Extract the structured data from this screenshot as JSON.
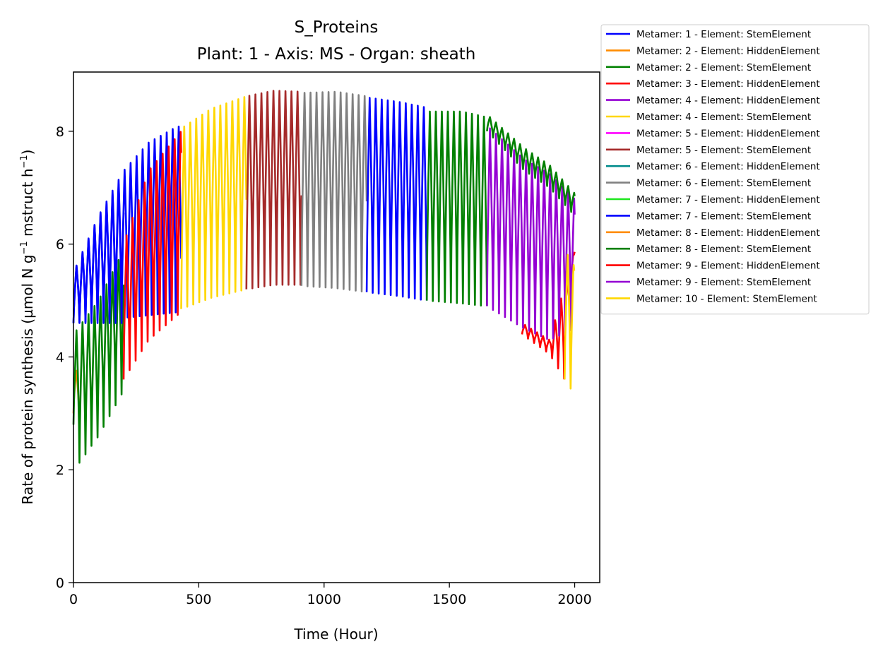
{
  "chart_data": {
    "type": "line",
    "title": "S_Proteins",
    "subtitle": "Plant: 1 - Axis: MS - Organ: sheath",
    "xlabel": "Time (Hour)",
    "ylabel_main": "Rate of protein synthesis (µmol N g",
    "ylabel_sup1": "−1",
    "ylabel_mid": " mstruct h",
    "ylabel_sup2": "−1",
    "ylabel_end": ")",
    "xlim": [
      0,
      2100
    ],
    "ylim": [
      0,
      9.05
    ],
    "xticks": [
      0,
      500,
      1000,
      1500,
      2000
    ],
    "yticks": [
      0,
      2,
      4,
      6,
      8
    ],
    "legend_position": "outside-top-right",
    "series": [
      {
        "name": "Metamer: 1 - Element: StemElement",
        "color": "#0000ff",
        "t0": 0,
        "t1": 430,
        "upper": [
          [
            0,
            5.5
          ],
          [
            100,
            6.5
          ],
          [
            200,
            7.3
          ],
          [
            300,
            7.8
          ],
          [
            400,
            8.05
          ],
          [
            430,
            8.1
          ]
        ],
        "lower": [
          [
            0,
            4.6
          ],
          [
            430,
            4.8
          ]
        ],
        "mask": "below"
      },
      {
        "name": "Metamer: 2 - Element: HiddenElement",
        "color": "#ff8c00",
        "t0": 0,
        "t1": 25,
        "upper": [
          [
            0,
            3.9
          ],
          [
            25,
            3.6
          ]
        ],
        "lower": [
          [
            0,
            3.0
          ],
          [
            25,
            2.9
          ]
        ]
      },
      {
        "name": "Metamer: 2 - Element: StemElement",
        "color": "#008000",
        "t0": 0,
        "t1": 200,
        "upper": [
          [
            0,
            4.4
          ],
          [
            100,
            5.0
          ],
          [
            200,
            5.9
          ]
        ],
        "lower": [
          [
            0,
            2.8
          ],
          [
            20,
            2.1
          ],
          [
            100,
            2.6
          ],
          [
            200,
            3.4
          ]
        ]
      },
      {
        "name": "Metamer: 3 - Element: HiddenElement",
        "color": "#ff0000",
        "t0": 200,
        "t1": 430,
        "upper": [
          [
            200,
            6.0
          ],
          [
            300,
            7.3
          ],
          [
            430,
            8.0
          ]
        ],
        "lower": [
          [
            200,
            3.6
          ],
          [
            300,
            4.3
          ],
          [
            430,
            4.8
          ]
        ]
      },
      {
        "name": "Metamer: 4 - Element: HiddenElement",
        "color": "#9400d3",
        "t0": 0,
        "t1": 0,
        "upper": [],
        "lower": []
      },
      {
        "name": "Metamer: 4 - Element: StemElement",
        "color": "#ffd700",
        "t0": 430,
        "t1": 690,
        "upper": [
          [
            430,
            8.05
          ],
          [
            550,
            8.4
          ],
          [
            690,
            8.62
          ]
        ],
        "lower": [
          [
            430,
            4.85
          ],
          [
            550,
            5.05
          ],
          [
            690,
            5.2
          ]
        ]
      },
      {
        "name": "Metamer: 5 - Element: HiddenElement",
        "color": "#ff00ff",
        "t0": 0,
        "t1": 0,
        "upper": [],
        "lower": []
      },
      {
        "name": "Metamer: 5 - Element: StemElement",
        "color": "#a52a2a",
        "t0": 690,
        "t1": 910,
        "upper": [
          [
            690,
            8.62
          ],
          [
            800,
            8.72
          ],
          [
            910,
            8.7
          ]
        ],
        "lower": [
          [
            690,
            5.2
          ],
          [
            800,
            5.28
          ],
          [
            910,
            5.28
          ]
        ]
      },
      {
        "name": "Metamer: 6 - Element: HiddenElement",
        "color": "#008b8b",
        "t0": 0,
        "t1": 0,
        "upper": [],
        "lower": []
      },
      {
        "name": "Metamer: 6 - Element: StemElement",
        "color": "#808080",
        "t0": 910,
        "t1": 1170,
        "upper": [
          [
            910,
            8.68
          ],
          [
            1050,
            8.7
          ],
          [
            1170,
            8.62
          ]
        ],
        "lower": [
          [
            910,
            5.26
          ],
          [
            1050,
            5.22
          ],
          [
            1170,
            5.15
          ]
        ]
      },
      {
        "name": "Metamer: 7 - Element: HiddenElement",
        "color": "#1ee61e",
        "t0": 0,
        "t1": 0,
        "upper": [],
        "lower": []
      },
      {
        "name": "Metamer: 7 - Element: StemElement",
        "color": "#0000ff",
        "t0": 1170,
        "t1": 1410,
        "upper": [
          [
            1170,
            8.6
          ],
          [
            1300,
            8.52
          ],
          [
            1410,
            8.42
          ]
        ],
        "lower": [
          [
            1170,
            5.15
          ],
          [
            1300,
            5.08
          ],
          [
            1410,
            5.0
          ]
        ]
      },
      {
        "name": "Metamer: 8 - Element: HiddenElement",
        "color": "#ff8c00",
        "t0": 0,
        "t1": 0,
        "upper": [],
        "lower": []
      },
      {
        "name": "Metamer: 8 - Element: StemElement",
        "color": "#008000",
        "t0": 1410,
        "t1": 1650,
        "upper": [
          [
            1410,
            8.35
          ],
          [
            1550,
            8.35
          ],
          [
            1650,
            8.25
          ]
        ],
        "lower": [
          [
            1410,
            5.0
          ],
          [
            1550,
            4.95
          ],
          [
            1650,
            4.9
          ]
        ]
      },
      {
        "name": "Metamer: 9 - Element: HiddenElement",
        "color": "#ff0000",
        "t0": 1790,
        "t1": 2000,
        "upper": [
          [
            1790,
            4.6
          ],
          [
            1900,
            4.3
          ],
          [
            2000,
            5.9
          ]
        ],
        "lower": [
          [
            1790,
            4.4
          ],
          [
            1900,
            4.05
          ],
          [
            1960,
            3.6
          ],
          [
            2000,
            5.8
          ]
        ]
      },
      {
        "name": "Metamer: 9 - Element: StemElement",
        "color": "#9400d3",
        "t0": 1650,
        "t1": 2000,
        "upper": [
          [
            1650,
            8.1
          ],
          [
            1800,
            7.5
          ],
          [
            1900,
            7.25
          ],
          [
            2000,
            6.8
          ]
        ],
        "lower": [
          [
            1650,
            4.9
          ],
          [
            1800,
            4.5
          ],
          [
            1900,
            4.3
          ],
          [
            2000,
            4.5
          ]
        ]
      },
      {
        "name": "Metamer: 10 - Element: StemElement",
        "color": "#ffd700",
        "t0": 1960,
        "t1": 2000,
        "upper": [
          [
            1960,
            5.9
          ],
          [
            2000,
            5.6
          ]
        ],
        "lower": [
          [
            1960,
            3.6
          ],
          [
            1990,
            3.4
          ],
          [
            2000,
            5.4
          ]
        ]
      }
    ],
    "overlay_spikes": [
      {
        "color": "#0000ff",
        "t0": 0,
        "t1": 200,
        "upper": [
          [
            0,
            5.5
          ],
          [
            100,
            6.5
          ],
          [
            200,
            7.2
          ]
        ],
        "lower": [
          [
            0,
            4.6
          ],
          [
            100,
            4.6
          ],
          [
            200,
            4.6
          ]
        ]
      },
      {
        "color": "#008000",
        "t0": 1650,
        "t1": 2000,
        "upper": [
          [
            1650,
            8.3
          ],
          [
            1800,
            7.7
          ],
          [
            1900,
            7.4
          ],
          [
            2000,
            6.9
          ]
        ],
        "lower": [
          [
            1650,
            8.0
          ],
          [
            1800,
            7.3
          ],
          [
            1900,
            7.0
          ],
          [
            2000,
            6.5
          ]
        ]
      }
    ]
  }
}
